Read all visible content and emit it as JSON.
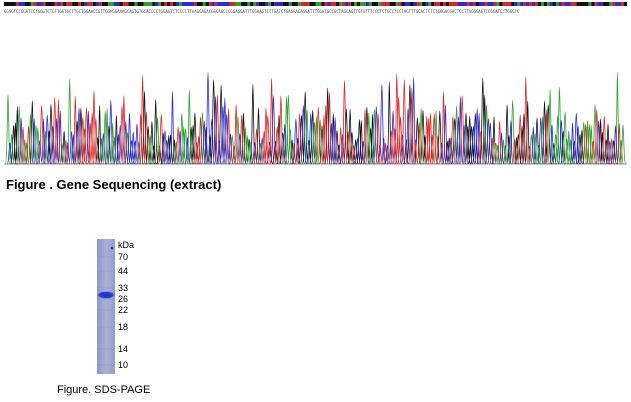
{
  "sequencing": {
    "bases": "GGGGTCCGGATCCTGGGTCTGTTGGTGCTTGCTGGAACCGTTGGAGGAAAGCAGTGTGCACCCCTGGAGTCTCCCCTTAAGGAGACGGCAGCCCGGAGGATTTGGAAGTCTTGATCTGAGAACAGGATTTGGATGCCGCTAGCAGTTGTGTTTCCCTCTGCCTCCTAGTTTGCACTCTCTGAGACGACTCCTTGGGGAGTCCGGATCCTGGGTC",
    "trace_colors": [
      "#111111",
      "#2ea02e",
      "#2b2bd6",
      "#d62828"
    ],
    "caption": "Figure . Gene Sequencing (extract)"
  },
  "sds_page": {
    "unit": "kDa",
    "markers": [
      {
        "label": "70",
        "value": 70
      },
      {
        "label": "44",
        "value": 44
      },
      {
        "label": "33",
        "value": 33
      },
      {
        "label": "26",
        "value": 26
      },
      {
        "label": "22",
        "value": 22
      },
      {
        "label": "18",
        "value": 18
      },
      {
        "label": "14",
        "value": 14
      },
      {
        "label": "10",
        "value": 10
      }
    ],
    "band_kda": 28,
    "caption": "Figure. SDS-PAGE"
  }
}
